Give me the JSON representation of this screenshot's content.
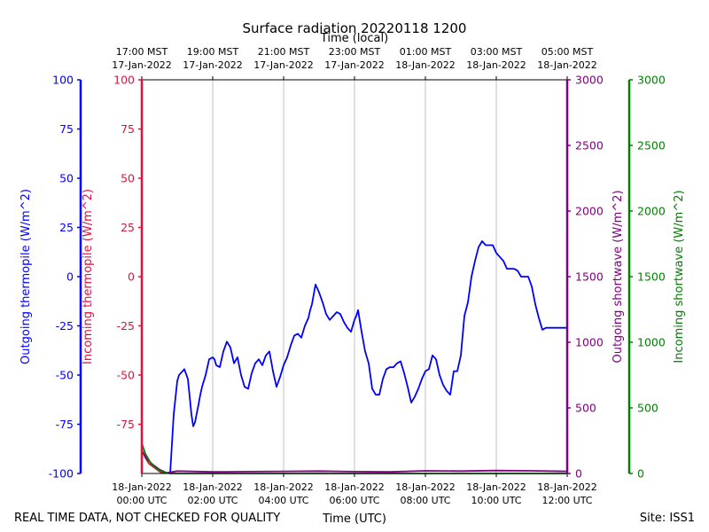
{
  "chart_data": {
    "type": "line",
    "title": "Surface radiation 20220118 1200",
    "top_axis_label": "Time (local)",
    "xlabel": "Time (UTC)",
    "footer_left": "REAL TIME DATA, NOT CHECKED FOR QUALITY",
    "footer_right": "Site: ISS1",
    "x_range_hours": [
      0,
      12
    ],
    "bottom_ticks": [
      {
        "h": 0,
        "line1": "18-Jan-2022",
        "line2": "00:00 UTC"
      },
      {
        "h": 2,
        "line1": "18-Jan-2022",
        "line2": "02:00 UTC"
      },
      {
        "h": 4,
        "line1": "18-Jan-2022",
        "line2": "04:00 UTC"
      },
      {
        "h": 6,
        "line1": "18-Jan-2022",
        "line2": "06:00 UTC"
      },
      {
        "h": 8,
        "line1": "18-Jan-2022",
        "line2": "08:00 UTC"
      },
      {
        "h": 10,
        "line1": "18-Jan-2022",
        "line2": "10:00 UTC"
      },
      {
        "h": 12,
        "line1": "18-Jan-2022",
        "line2": "12:00 UTC"
      }
    ],
    "top_ticks": [
      {
        "h": 0,
        "line1": "17:00 MST",
        "line2": "17-Jan-2022"
      },
      {
        "h": 2,
        "line1": "19:00 MST",
        "line2": "17-Jan-2022"
      },
      {
        "h": 4,
        "line1": "21:00 MST",
        "line2": "17-Jan-2022"
      },
      {
        "h": 6,
        "line1": "23:00 MST",
        "line2": "17-Jan-2022"
      },
      {
        "h": 8,
        "line1": "01:00 MST",
        "line2": "18-Jan-2022"
      },
      {
        "h": 10,
        "line1": "03:00 MST",
        "line2": "18-Jan-2022"
      },
      {
        "h": 12,
        "line1": "05:00 MST",
        "line2": "18-Jan-2022"
      }
    ],
    "axes": {
      "outgoing_thermopile": {
        "label": "Outgoing thermopile (W/m^2)",
        "color": "#0000ff",
        "ylim": [
          -100,
          100
        ],
        "ticks": [
          100,
          75,
          50,
          25,
          0,
          -25,
          -50,
          -75,
          -100
        ]
      },
      "incoming_thermopile": {
        "label": "Incoming thermopile (W/m^2)",
        "color": "#dc143c",
        "ylim": [
          -100,
          100
        ],
        "ticks": [
          100,
          75,
          50,
          25,
          0,
          -25,
          -50,
          -75
        ]
      },
      "outgoing_shortwave": {
        "label": "Outgoing shortwave (W/m^2)",
        "color": "#800080",
        "ylim": [
          0,
          3000
        ],
        "ticks": [
          3000,
          2500,
          2000,
          1500,
          1000,
          500,
          0
        ]
      },
      "incoming_shortwave": {
        "label": "Incoming shortwave (W/m^2)",
        "color": "#008000",
        "ylim": [
          0,
          3000
        ],
        "ticks": [
          3000,
          2500,
          2000,
          1500,
          1000,
          500,
          0
        ]
      }
    },
    "series": [
      {
        "name": "Outgoing thermopile",
        "axis": "outgoing_thermopile",
        "color": "#0000ff",
        "x": [
          0.8,
          0.9,
          1.0,
          1.05,
          1.1,
          1.2,
          1.3,
          1.4,
          1.45,
          1.5,
          1.6,
          1.65,
          1.7,
          1.8,
          1.9,
          2.0,
          2.05,
          2.1,
          2.2,
          2.3,
          2.4,
          2.5,
          2.55,
          2.6,
          2.7,
          2.8,
          2.9,
          3.0,
          3.1,
          3.2,
          3.3,
          3.4,
          3.5,
          3.6,
          3.7,
          3.8,
          3.9,
          4.0,
          4.1,
          4.2,
          4.3,
          4.4,
          4.5,
          4.6,
          4.7,
          4.75,
          4.8,
          4.9,
          5.0,
          5.1,
          5.2,
          5.3,
          5.4,
          5.5,
          5.6,
          5.7,
          5.8,
          5.9,
          6.0,
          6.05,
          6.1,
          6.2,
          6.3,
          6.4,
          6.5,
          6.6,
          6.7,
          6.8,
          6.9,
          7.0,
          7.1,
          7.2,
          7.3,
          7.4,
          7.5,
          7.6,
          7.7,
          7.8,
          7.9,
          8.0,
          8.1,
          8.2,
          8.3,
          8.4,
          8.5,
          8.6,
          8.7,
          8.8,
          8.9,
          9.0,
          9.1,
          9.2,
          9.3,
          9.4,
          9.5,
          9.6,
          9.7,
          9.8,
          9.9,
          10.0,
          10.1,
          10.2,
          10.3,
          10.4,
          10.5,
          10.6,
          10.7,
          10.8,
          10.9,
          11.0,
          11.1,
          11.2,
          11.3,
          11.4,
          11.5,
          11.6,
          11.7,
          11.8,
          11.9,
          12.0
        ],
        "values": [
          -100,
          -70,
          -53,
          -50,
          -49,
          -47,
          -52,
          -70,
          -76,
          -74,
          -65,
          -60,
          -56,
          -50,
          -42,
          -41,
          -42,
          -45,
          -46,
          -38,
          -33,
          -36,
          -40,
          -44,
          -41,
          -50,
          -56,
          -57,
          -49,
          -44,
          -42,
          -45,
          -40,
          -38,
          -48,
          -56,
          -51,
          -45,
          -41,
          -35,
          -30,
          -29,
          -31,
          -25,
          -21,
          -17,
          -14,
          -4,
          -8,
          -13,
          -19,
          -22,
          -20,
          -18,
          -19,
          -23,
          -26,
          -28,
          -22,
          -20,
          -17,
          -28,
          -38,
          -44,
          -57,
          -60,
          -60,
          -52,
          -47,
          -46,
          -46,
          -44,
          -43,
          -49,
          -56,
          -64,
          -61,
          -57,
          -52,
          -48,
          -47,
          -40,
          -42,
          -50,
          -55,
          -58,
          -60,
          -48,
          -48,
          -40,
          -20,
          -13,
          0,
          8,
          15,
          18,
          16,
          16,
          16,
          12,
          10,
          8,
          4,
          4,
          4,
          3,
          0,
          0,
          0,
          -5,
          -14,
          -21,
          -27,
          -26,
          -26,
          -26,
          -26,
          -26,
          -26,
          -26
        ]
      },
      {
        "name": "Incoming thermopile",
        "axis": "incoming_thermopile",
        "color": "#dc143c",
        "x": [
          0.0,
          0.1,
          0.2,
          0.35,
          0.5,
          0.6
        ],
        "values": [
          -88,
          -92,
          -95,
          -97,
          -99,
          -100
        ]
      },
      {
        "name": "Outgoing shortwave",
        "axis": "outgoing_shortwave",
        "color": "#800080",
        "x": [
          0.0,
          0.15,
          0.3,
          0.5,
          0.7,
          1.0,
          2.0,
          3.0,
          4.0,
          5.0,
          6.0,
          7.0,
          8.0,
          9.0,
          10.0,
          11.0,
          12.0
        ],
        "values": [
          170,
          110,
          70,
          30,
          5,
          18,
          12,
          14,
          16,
          18,
          14,
          12,
          20,
          18,
          22,
          20,
          16
        ]
      },
      {
        "name": "Incoming shortwave",
        "axis": "incoming_shortwave",
        "color": "#008000",
        "x": [
          0.0,
          0.1,
          0.25,
          0.4,
          0.6,
          0.8,
          2.0,
          4.0,
          6.0,
          8.0,
          10.0,
          12.0
        ],
        "values": [
          230,
          150,
          80,
          40,
          10,
          0,
          0,
          0,
          0,
          0,
          0,
          0
        ]
      }
    ]
  }
}
